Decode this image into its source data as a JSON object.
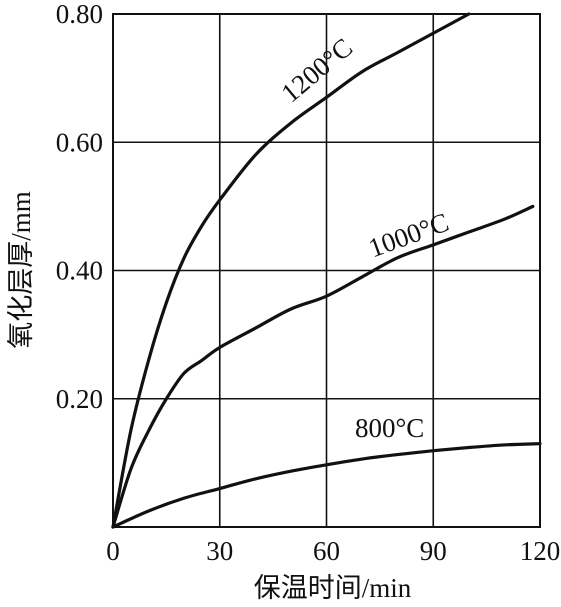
{
  "chart_data": {
    "type": "line",
    "title": "",
    "xlabel": "保温时间/min",
    "ylabel": "氧化层厚/mm",
    "xlim": [
      0,
      120
    ],
    "ylim": [
      0,
      0.8
    ],
    "xticks": [
      "0",
      "30",
      "60",
      "90",
      "120"
    ],
    "yticks": [
      "0.20",
      "0.40",
      "0.60",
      "0.80"
    ],
    "grid": true,
    "series": [
      {
        "name": "1200°C",
        "x": [
          0,
          5,
          10,
          15,
          20,
          25,
          30,
          40,
          50,
          60,
          70,
          80,
          90,
          100
        ],
        "y": [
          0,
          0.15,
          0.26,
          0.35,
          0.42,
          0.47,
          0.51,
          0.58,
          0.63,
          0.67,
          0.71,
          0.74,
          0.77,
          0.8
        ]
      },
      {
        "name": "1000°C",
        "x": [
          0,
          5,
          10,
          15,
          20,
          25,
          30,
          40,
          50,
          60,
          70,
          80,
          90,
          100,
          110,
          118
        ],
        "y": [
          0,
          0.09,
          0.15,
          0.2,
          0.24,
          0.26,
          0.28,
          0.31,
          0.34,
          0.36,
          0.39,
          0.42,
          0.44,
          0.46,
          0.48,
          0.5
        ]
      },
      {
        "name": "800°C",
        "x": [
          0,
          10,
          20,
          30,
          40,
          50,
          60,
          70,
          80,
          90,
          100,
          110,
          120
        ],
        "y": [
          0,
          0.025,
          0.045,
          0.06,
          0.075,
          0.087,
          0.097,
          0.106,
          0.113,
          0.119,
          0.124,
          0.128,
          0.13
        ]
      }
    ]
  }
}
